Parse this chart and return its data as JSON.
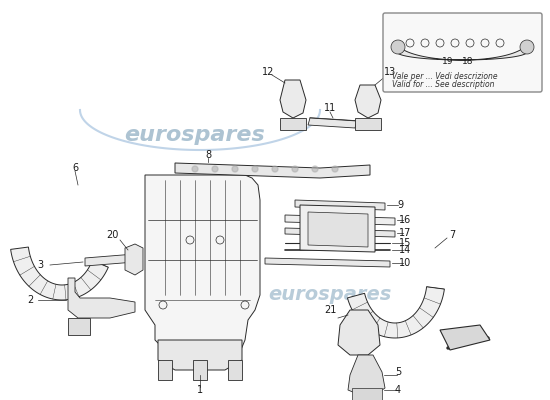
{
  "bg_color": "#ffffff",
  "watermark_text": "eurospares",
  "watermark_color": "#b8cfe0",
  "line_color": "#2a2a2a",
  "label_color": "#1a1a1a",
  "inset_text_line1": "Vale per ... Vedi descrizione",
  "inset_text_line2": "Valid for ... See description",
  "logo_arc_color": "#c0d4e8",
  "logo_text_color": "#8aaac0"
}
